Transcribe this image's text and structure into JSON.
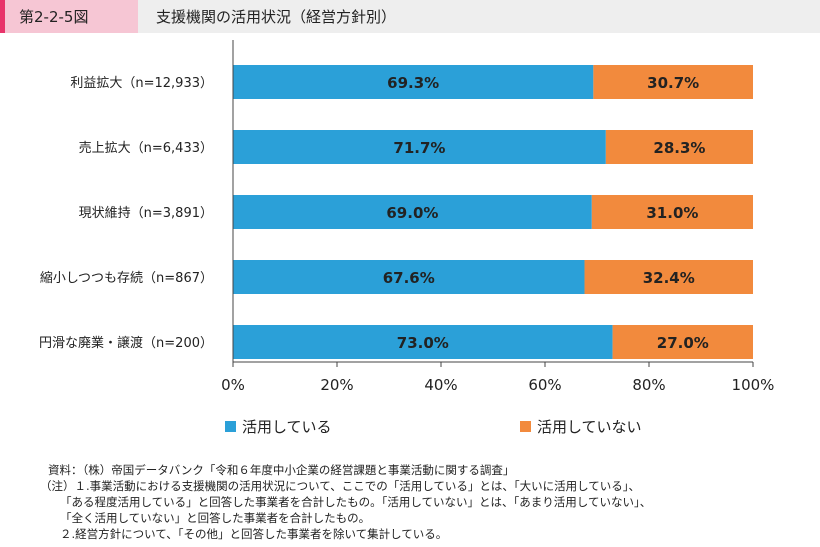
{
  "header": {
    "figure_number": "第2-2-5図",
    "title": "支援機関の活用状況（経営方針別）"
  },
  "colors": {
    "used": "#2ba0d8",
    "not_used": "#f28a3d",
    "header_accent": "#e8336a",
    "header_fig_bg": "#f6c6d4"
  },
  "chart_data": {
    "type": "bar",
    "orientation": "horizontal",
    "stacked": true,
    "categories": [
      "利益拡大（n=12,933）",
      "売上拡大（n=6,433）",
      "現状維持（n=3,891）",
      "縮小しつつも存続（n=867）",
      "円滑な廃業・譲渡（n=200）"
    ],
    "series": [
      {
        "name": "活用している",
        "values": [
          69.3,
          71.7,
          69.0,
          67.6,
          73.0
        ],
        "labels": [
          "69.3%",
          "71.7%",
          "69.0%",
          "67.6%",
          "73.0%"
        ]
      },
      {
        "name": "活用していない",
        "values": [
          30.7,
          28.3,
          31.0,
          32.4,
          27.0
        ],
        "labels": [
          "30.7%",
          "28.3%",
          "31.0%",
          "32.4%",
          "27.0%"
        ]
      }
    ],
    "xlim": [
      0,
      100
    ],
    "xticks": [
      "0%",
      "20%",
      "40%",
      "60%",
      "80%",
      "100%"
    ],
    "legend_position": "bottom",
    "grid": false
  },
  "notes": [
    "資料：（株）帝国データバンク「令和６年度中小企業の経営課題と事業活動に関する調査」",
    "（注）１.事業活動における支援機関の活用状況について、ここでの「活用している」とは、「大いに活用している」、",
    "「ある程度活用している」と回答した事業者を合計したもの。「活用していない」とは、「あまり活用していない」、",
    "「全く活用していない」と回答した事業者を合計したもの。",
    "２.経営方針について、「その他」と回答した事業者を除いて集計している。"
  ]
}
